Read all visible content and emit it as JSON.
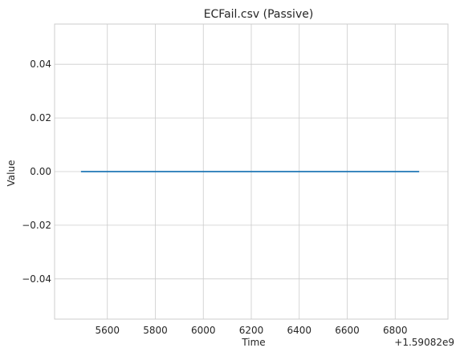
{
  "chart_data": {
    "type": "line",
    "title": "ECFail.csv (Passive)",
    "xlabel": "Time",
    "ylabel": "Value",
    "x_offset_label": "+1.59082e9",
    "xlim": [
      5380,
      7020
    ],
    "ylim": [
      -0.055,
      0.055
    ],
    "x_ticks": [
      5600,
      5800,
      6000,
      6200,
      6400,
      6600,
      6800
    ],
    "x_tick_labels": [
      "5600",
      "5800",
      "6000",
      "6200",
      "6400",
      "6600",
      "6800"
    ],
    "y_ticks": [
      0.04,
      0.02,
      0.0,
      -0.02,
      -0.04
    ],
    "y_tick_labels": [
      "0.04",
      "0.02",
      "0.00",
      "−0.02",
      "−0.04"
    ],
    "grid": true,
    "series": [
      {
        "color": "#1f77b4",
        "x": [
          5490,
          6900
        ],
        "y": [
          0.0,
          0.0
        ]
      }
    ]
  }
}
